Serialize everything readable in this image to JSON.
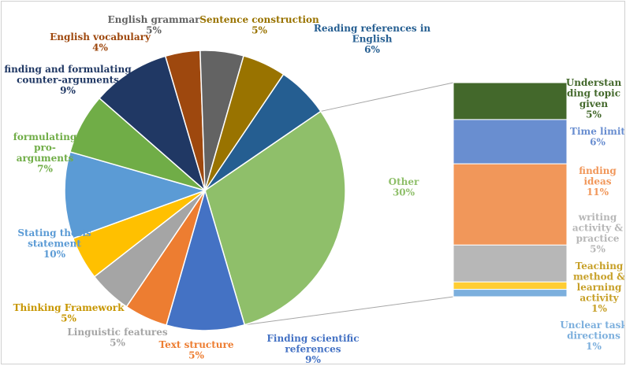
{
  "chart_data": {
    "type": "pie",
    "variant": "bar-of-pie",
    "legend": "none",
    "pie": {
      "slices": [
        {
          "label_lines": [
            "Reading references in",
            "English"
          ],
          "value_label": "6%",
          "value": 6,
          "color": "#255e91"
        },
        {
          "label_lines": [
            "Other"
          ],
          "value_label": "30%",
          "value": 30,
          "color": "#8fbf6a"
        },
        {
          "label_lines": [
            "Finding scientific",
            "references"
          ],
          "value_label": "9%",
          "value": 9,
          "color": "#4472c4"
        },
        {
          "label_lines": [
            "Text structure"
          ],
          "value_label": "5%",
          "value": 5,
          "color": "#ed7d31"
        },
        {
          "label_lines": [
            "Linguistic features"
          ],
          "value_label": "5%",
          "value": 5,
          "color": "#a5a5a5"
        },
        {
          "label_lines": [
            "Thinking Framework"
          ],
          "value_label": "5%",
          "value": 5,
          "color": "#ffc000"
        },
        {
          "label_lines": [
            "Stating thesis",
            "statement"
          ],
          "value_label": "10%",
          "value": 10,
          "color": "#5b9bd5"
        },
        {
          "label_lines": [
            "formulating",
            "pro-",
            "arguments"
          ],
          "value_label": "7%",
          "value": 7,
          "color": "#70ad47"
        },
        {
          "label_lines": [
            "finding and formulating",
            "counter-arguments"
          ],
          "value_label": "9%",
          "value": 9,
          "color": "#203864"
        },
        {
          "label_lines": [
            "English vocabulary"
          ],
          "value_label": "4%",
          "value": 4,
          "color": "#9e480e"
        },
        {
          "label_lines": [
            "English grammar"
          ],
          "value_label": "5%",
          "value": 5,
          "color": "#636363"
        },
        {
          "label_lines": [
            "Sentence construction"
          ],
          "value_label": "5%",
          "value": 5,
          "color": "#997300"
        }
      ]
    },
    "bar": {
      "segments": [
        {
          "label_lines": [
            "Understan",
            "ding topic",
            "given"
          ],
          "value_label": "5%",
          "value": 5,
          "color": "#43682b"
        },
        {
          "label_lines": [
            "Time limit"
          ],
          "value_label": "6%",
          "value": 6,
          "color": "#698ed0"
        },
        {
          "label_lines": [
            "finding",
            "ideas"
          ],
          "value_label": "11%",
          "value": 11,
          "color": "#f1975a"
        },
        {
          "label_lines": [
            "writing",
            "activity &",
            "practice"
          ],
          "value_label": "5%",
          "value": 5,
          "color": "#b7b7b7"
        },
        {
          "label_lines": [
            "Teaching",
            "method &",
            "learning",
            "activity"
          ],
          "value_label": "1%",
          "value": 1,
          "color": "#ffcd33"
        },
        {
          "label_lines": [
            "Unclear task",
            "directions"
          ],
          "value_label": "1%",
          "value": 1,
          "color": "#7cafdd"
        }
      ]
    }
  }
}
